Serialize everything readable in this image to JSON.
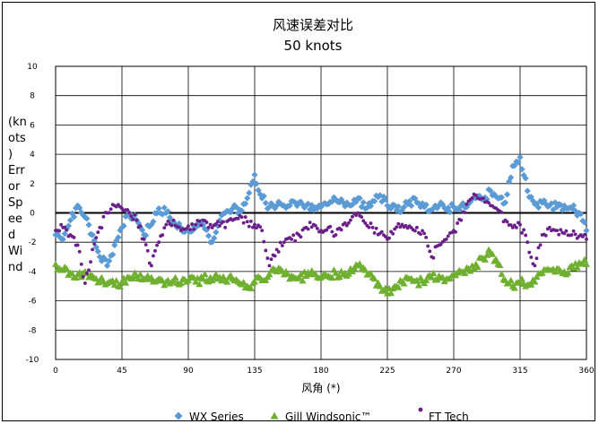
{
  "chart_data": {
    "type": "scatter",
    "title": "风速误差对比",
    "subtitle": "50 knots",
    "xlabel": "风角 (*)",
    "ylabel_lines": [
      "(kn",
      "ots",
      ")",
      "Err",
      "or",
      "Sp",
      "ee",
      "d",
      "Wi",
      "nd"
    ],
    "xlim": [
      0,
      360
    ],
    "ylim": [
      -10,
      10
    ],
    "x_ticks": [
      0,
      45,
      90,
      135,
      180,
      225,
      270,
      315,
      360
    ],
    "y_ticks": [
      -10,
      -8,
      -6,
      -4,
      -2,
      0,
      2,
      4,
      6,
      8,
      10
    ],
    "grid": true,
    "legend_position": "bottom",
    "colors": {
      "WX Series": "#5b9bd5",
      "Gill Windsonic™": "#70b030",
      "FT Tech": "#6b1f8a"
    },
    "series": [
      {
        "name": "WX Series",
        "marker": "diamond",
        "x": [
          0,
          5,
          10,
          15,
          20,
          25,
          30,
          35,
          40,
          45,
          50,
          55,
          60,
          65,
          70,
          75,
          80,
          85,
          90,
          95,
          100,
          105,
          110,
          115,
          120,
          125,
          130,
          135,
          140,
          145,
          150,
          155,
          160,
          165,
          170,
          175,
          180,
          185,
          190,
          195,
          200,
          205,
          210,
          215,
          220,
          225,
          230,
          235,
          240,
          245,
          250,
          255,
          260,
          265,
          270,
          275,
          280,
          285,
          290,
          295,
          300,
          305,
          310,
          315,
          320,
          325,
          330,
          335,
          340,
          345,
          350,
          355,
          360
        ],
        "y": [
          -1.5,
          -1.8,
          -0.5,
          0.5,
          -0.3,
          -1.5,
          -3.0,
          -3.6,
          -2.2,
          -1.0,
          0.0,
          -0.5,
          -1.5,
          -0.8,
          0.3,
          0.0,
          -0.6,
          -1.0,
          -1.2,
          -1.0,
          -0.8,
          -2.0,
          -0.9,
          0.0,
          0.3,
          0.2,
          1.0,
          2.6,
          1.0,
          0.4,
          0.5,
          0.5,
          0.8,
          0.7,
          0.5,
          0.2,
          0.4,
          0.6,
          0.9,
          0.7,
          0.5,
          1.0,
          0.3,
          0.8,
          1.2,
          0.5,
          0.5,
          0.2,
          0.8,
          0.7,
          0.4,
          0.2,
          0.5,
          0.2,
          0.4,
          0.5,
          0.6,
          1.0,
          0.9,
          1.5,
          1.0,
          0.7,
          3.2,
          3.8,
          1.5,
          0.6,
          0.7,
          0.5,
          0.4,
          0.5,
          0.3,
          0.0,
          -1.2
        ]
      },
      {
        "name": "Gill Windsonic™",
        "marker": "triangle",
        "x": [
          0,
          5,
          10,
          15,
          20,
          25,
          30,
          35,
          40,
          45,
          50,
          55,
          60,
          65,
          70,
          75,
          80,
          85,
          90,
          95,
          100,
          105,
          110,
          115,
          120,
          125,
          130,
          135,
          140,
          145,
          150,
          155,
          160,
          165,
          170,
          175,
          180,
          185,
          190,
          195,
          200,
          205,
          210,
          215,
          220,
          225,
          230,
          235,
          240,
          245,
          250,
          255,
          260,
          265,
          270,
          275,
          280,
          285,
          290,
          295,
          300,
          305,
          310,
          315,
          320,
          325,
          330,
          335,
          340,
          345,
          350,
          355,
          360
        ],
        "y": [
          -3.5,
          -3.9,
          -4.1,
          -4.2,
          -4.0,
          -4.3,
          -4.6,
          -4.8,
          -4.9,
          -4.7,
          -4.4,
          -4.3,
          -4.5,
          -4.4,
          -4.5,
          -4.7,
          -4.6,
          -4.8,
          -4.6,
          -4.7,
          -4.5,
          -4.4,
          -4.5,
          -4.6,
          -4.5,
          -4.8,
          -5.0,
          -4.7,
          -4.6,
          -4.2,
          -4.0,
          -4.2,
          -4.3,
          -4.4,
          -4.3,
          -4.2,
          -4.4,
          -4.3,
          -4.1,
          -4.2,
          -3.8,
          -3.6,
          -3.9,
          -4.4,
          -5.0,
          -5.5,
          -5.0,
          -4.7,
          -4.5,
          -4.6,
          -4.8,
          -4.4,
          -4.3,
          -4.5,
          -4.2,
          -4.0,
          -3.8,
          -3.5,
          -3.1,
          -2.7,
          -3.5,
          -4.6,
          -5.0,
          -4.7,
          -4.9,
          -4.7,
          -4.1,
          -3.9,
          -3.8,
          -4.0,
          -3.6,
          -3.4,
          -3.5
        ]
      },
      {
        "name": "FT Tech",
        "marker": "circle",
        "x": [
          0,
          5,
          10,
          15,
          20,
          25,
          30,
          35,
          40,
          45,
          50,
          55,
          60,
          65,
          70,
          75,
          80,
          85,
          90,
          95,
          100,
          105,
          110,
          115,
          120,
          125,
          130,
          135,
          140,
          145,
          150,
          155,
          160,
          165,
          170,
          175,
          180,
          185,
          190,
          195,
          200,
          205,
          210,
          215,
          220,
          225,
          230,
          235,
          240,
          245,
          250,
          255,
          260,
          265,
          270,
          275,
          280,
          285,
          290,
          295,
          300,
          305,
          310,
          315,
          320,
          325,
          330,
          335,
          340,
          345,
          350,
          355,
          360
        ],
        "y": [
          -1.2,
          -1.0,
          -1.5,
          -2.2,
          -4.8,
          -2.5,
          -1.0,
          0.0,
          0.5,
          0.3,
          0.0,
          -0.5,
          -1.8,
          -3.6,
          -2.0,
          -0.8,
          -0.5,
          -1.2,
          -0.9,
          -0.8,
          -0.5,
          -0.8,
          -0.6,
          -1.0,
          -0.5,
          -0.2,
          -0.6,
          -0.8,
          -1.2,
          -3.6,
          -2.5,
          -2.0,
          -1.8,
          -1.5,
          -1.0,
          -0.8,
          -1.2,
          -1.0,
          -1.5,
          -0.8,
          -0.5,
          0.0,
          -0.7,
          -1.0,
          -1.4,
          -1.8,
          -1.1,
          -0.8,
          -0.9,
          -1.0,
          -1.4,
          -3.0,
          -2.2,
          -1.8,
          -1.2,
          -0.5,
          0.8,
          1.2,
          1.0,
          0.5,
          0.2,
          -0.5,
          -1.0,
          -0.8,
          -2.0,
          -3.6,
          -1.5,
          -1.0,
          -1.2,
          -1.4,
          -1.5,
          -1.6,
          -1.8
        ]
      }
    ]
  }
}
